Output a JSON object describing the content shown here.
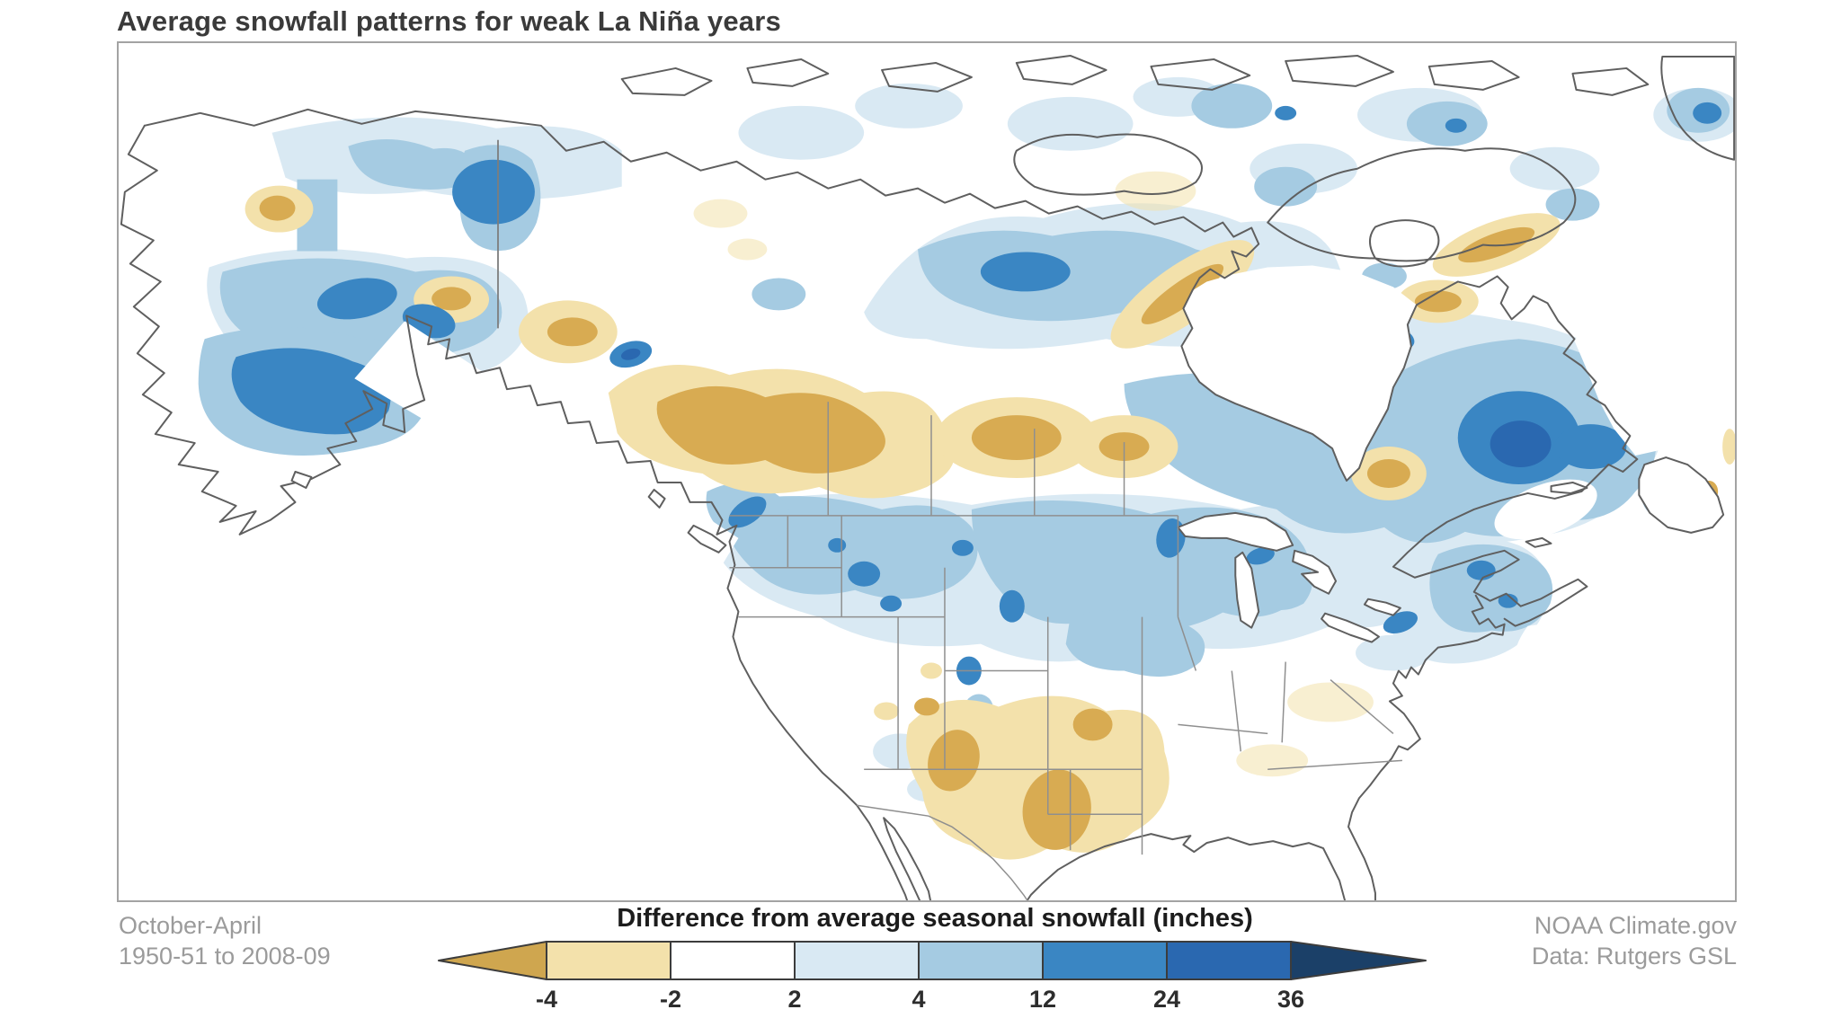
{
  "title": "Average snowfall patterns for weak La Niña years",
  "footer": {
    "period_line1": "October-April",
    "period_line2": "1950-51 to 2008-09",
    "credit_line1": "NOAA Climate.gov",
    "credit_line2": "Data: Rutgers GSL"
  },
  "legend": {
    "title": "Difference from average seasonal snowfall (inches)",
    "tick_labels": [
      "-4",
      "-2",
      "2",
      "4",
      "12",
      "24",
      "36"
    ],
    "segment_colors": [
      "#f3e1ab",
      "#ffffff",
      "#d9e9f3",
      "#a5cbe2",
      "#3a86c3",
      "#2a68b0"
    ],
    "arrow_left_color": "#cfa64f",
    "arrow_right_color": "#1b4068",
    "outline_color": "#3c3c3c"
  },
  "palette": {
    "tan": "#f3e1ab",
    "gold": "#d8ab52",
    "blue1": "#d9e9f3",
    "blue2": "#a5cbe2",
    "blue3": "#3a86c3",
    "blue4": "#2a68b0",
    "navy": "#1b4068",
    "coast": "#5f5f5f",
    "stateline": "#8f8f8f",
    "frame": "#a3a3a3",
    "note": "#9b9b9b"
  }
}
